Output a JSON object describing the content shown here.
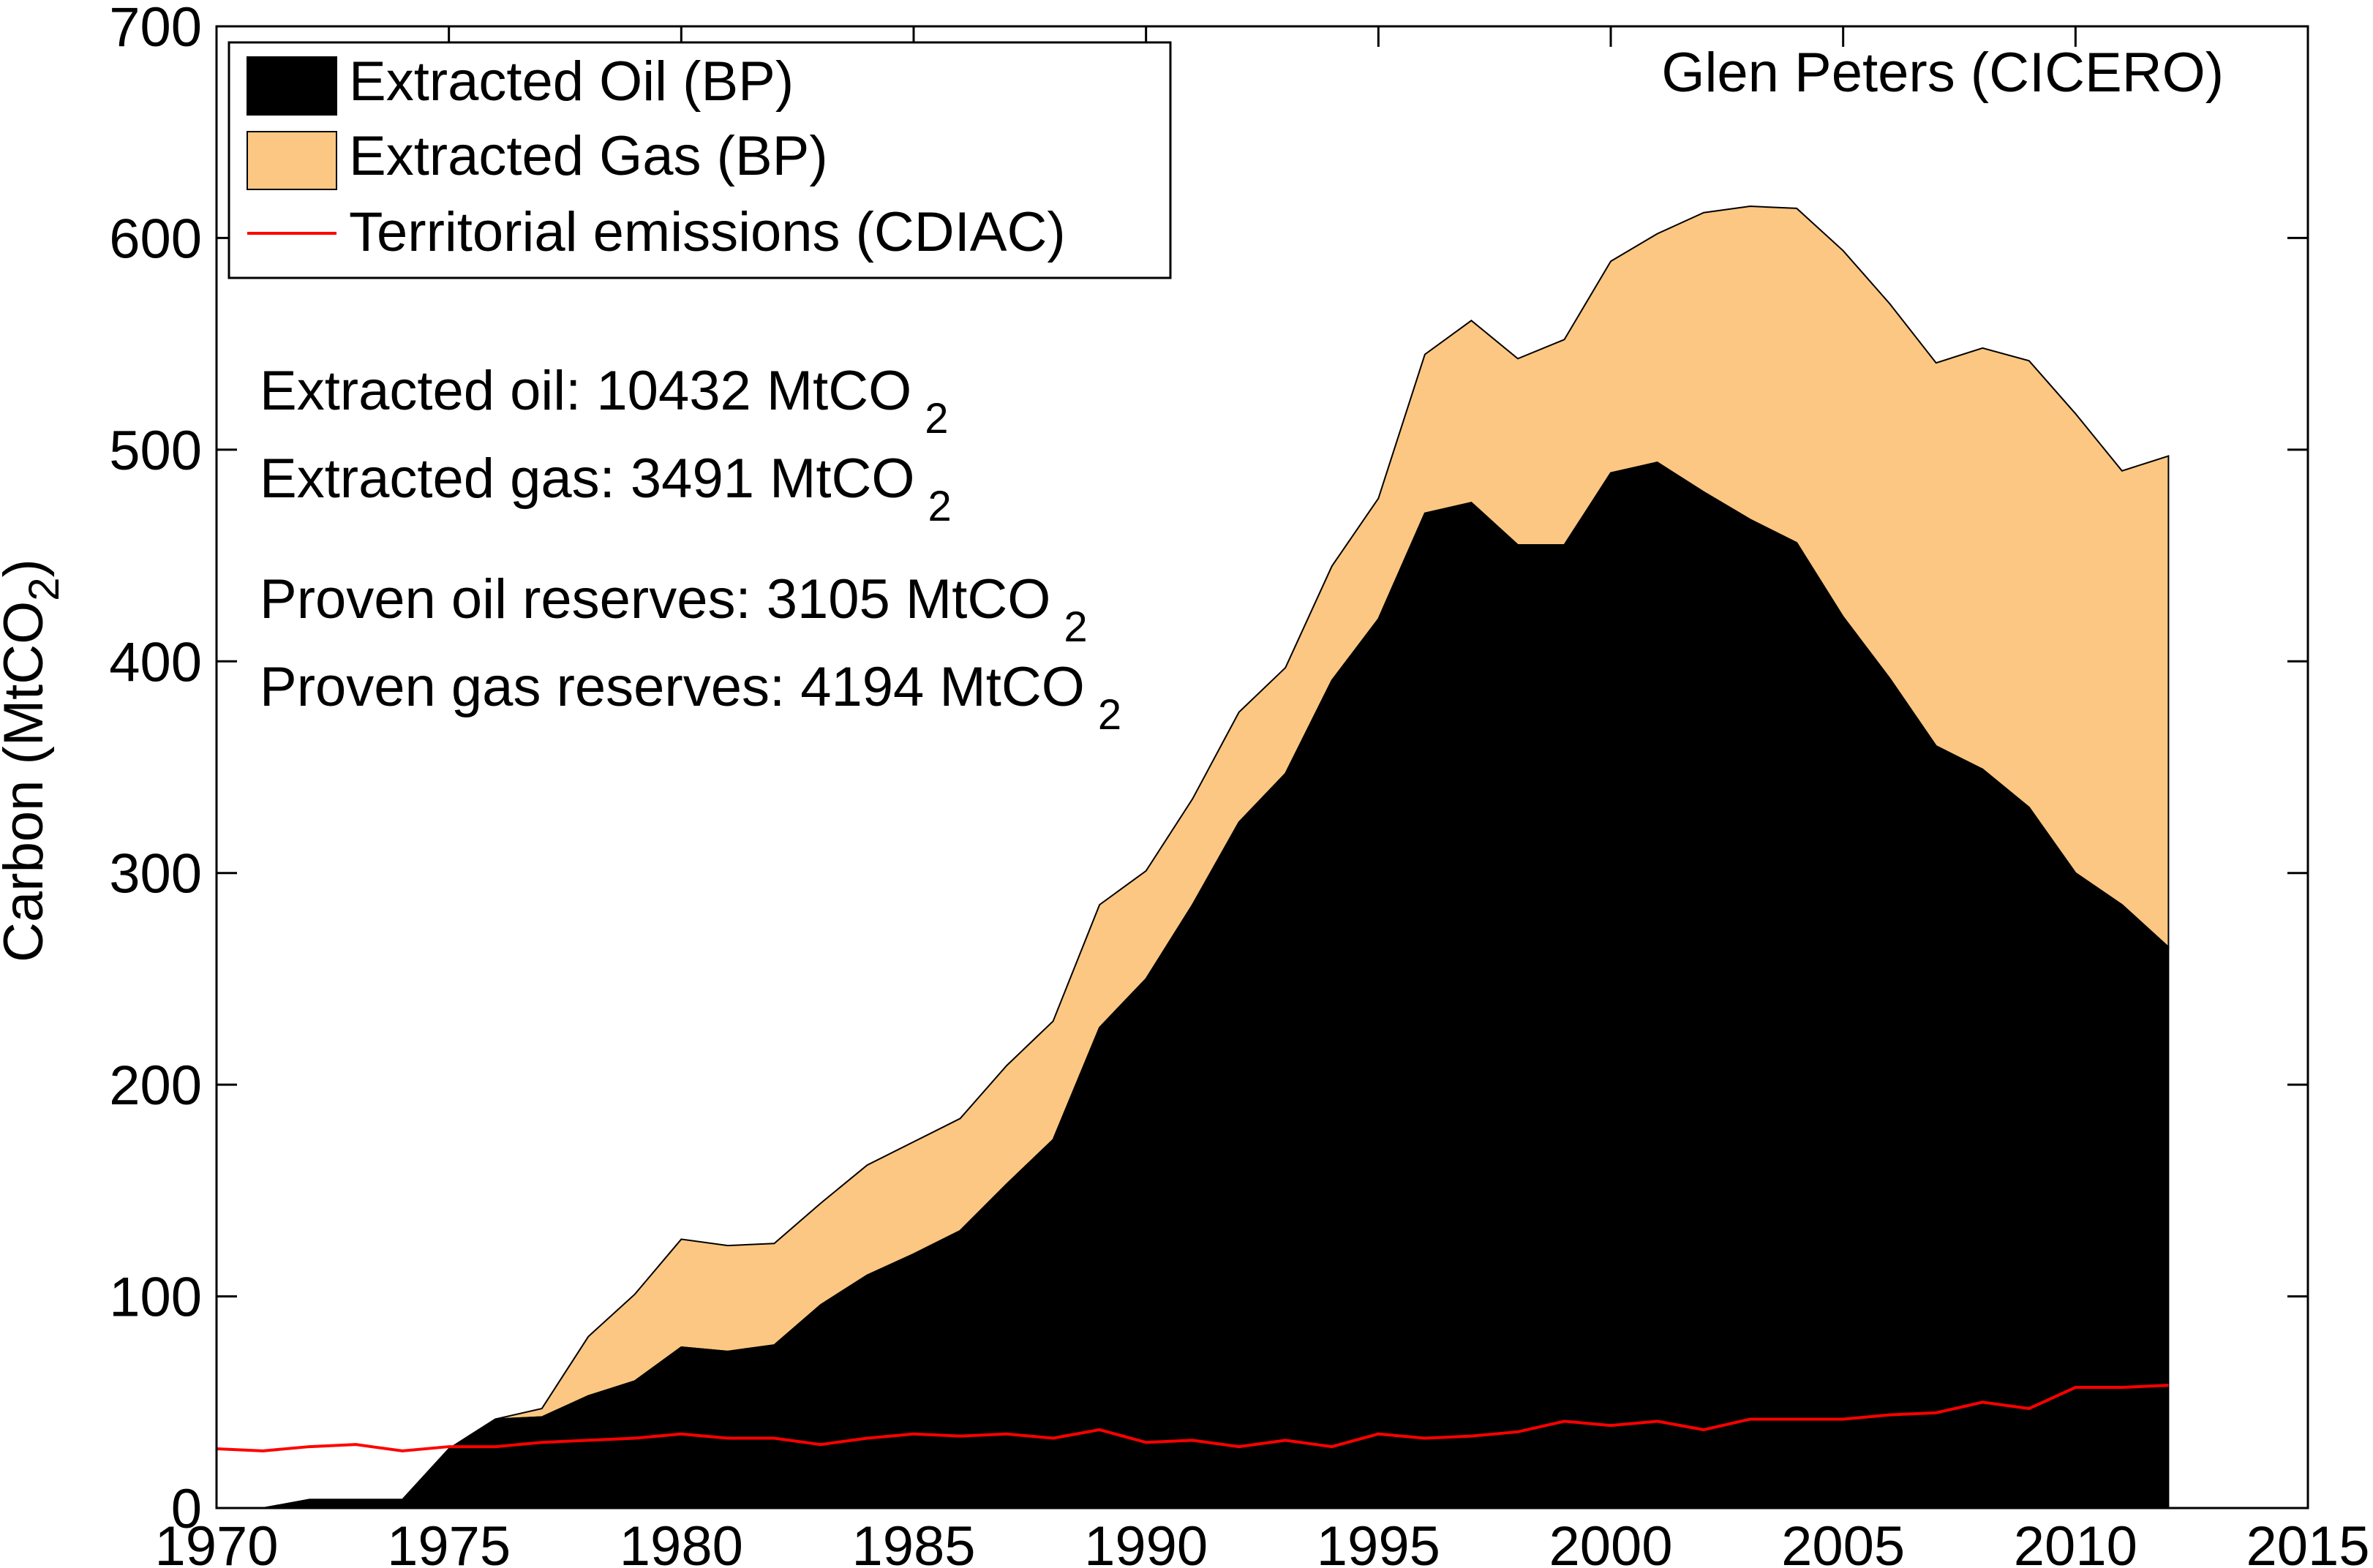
{
  "chart_data": {
    "type": "area",
    "xlabel": "",
    "ylabel": "Carbon (MtCO",
    "ylabel_sub": "2",
    "ylabel_close": ")",
    "xlim": [
      1970,
      2015
    ],
    "ylim": [
      0,
      700
    ],
    "xticks": [
      1970,
      1975,
      1980,
      1985,
      1990,
      1995,
      2000,
      2005,
      2010,
      2015
    ],
    "yticks": [
      0,
      100,
      200,
      300,
      400,
      500,
      600,
      700
    ],
    "grid": false,
    "legend_position": "top-left",
    "credit": "Glen Peters (CICERO)",
    "annotations": [
      {
        "text": "Extracted oil: 10432 MtCO",
        "sub": "2"
      },
      {
        "text": "Extracted gas: 3491 MtCO",
        "sub": "2"
      },
      {
        "text": "Proven oil reserves: 3105 MtCO",
        "sub": "2"
      },
      {
        "text": "Proven gas reserves: 4194 MtCO",
        "sub": "2"
      }
    ],
    "x": [
      1970,
      1971,
      1972,
      1973,
      1974,
      1975,
      1976,
      1977,
      1978,
      1979,
      1980,
      1981,
      1982,
      1983,
      1984,
      1985,
      1986,
      1987,
      1988,
      1989,
      1990,
      1991,
      1992,
      1993,
      1994,
      1995,
      1996,
      1997,
      1998,
      1999,
      2000,
      2001,
      2002,
      2003,
      2004,
      2005,
      2006,
      2007,
      2008,
      2009,
      2010,
      2011,
      2012
    ],
    "series": [
      {
        "name": "Extracted Oil (BP)",
        "kind": "area",
        "color": "#000000",
        "values": [
          0,
          0,
          4,
          4,
          4,
          28,
          42,
          43,
          53,
          60,
          76,
          74,
          77,
          96,
          110,
          120,
          131,
          153,
          174,
          227,
          250,
          285,
          324,
          347,
          391,
          420,
          470,
          475,
          455,
          455,
          489,
          494,
          480,
          467,
          456,
          421,
          392,
          360,
          349,
          331,
          300,
          285,
          265
        ]
      },
      {
        "name": "Extracted Gas (BP)",
        "kind": "area_stacked",
        "color": "#FCC782",
        "values": [
          0,
          0,
          0,
          0,
          0,
          0,
          0,
          4,
          28,
          41,
          51,
          50,
          48,
          48,
          52,
          53,
          53,
          56,
          56,
          58,
          51,
          50,
          52,
          50,
          54,
          57,
          75,
          86,
          88,
          97,
          100,
          108,
          132,
          148,
          158,
          173,
          177,
          181,
          199,
          211,
          217,
          205,
          232
        ]
      },
      {
        "name": "Territorial emissions (CDIAC)",
        "kind": "line",
        "color": "#FF0000",
        "values": [
          28,
          27,
          29,
          30,
          27,
          29,
          29,
          31,
          32,
          33,
          35,
          33,
          33,
          30,
          33,
          35,
          34,
          35,
          33,
          37,
          31,
          32,
          29,
          32,
          29,
          35,
          33,
          34,
          36,
          41,
          39,
          41,
          37,
          42,
          42,
          42,
          44,
          45,
          50,
          47,
          57,
          57,
          58
        ]
      }
    ]
  }
}
